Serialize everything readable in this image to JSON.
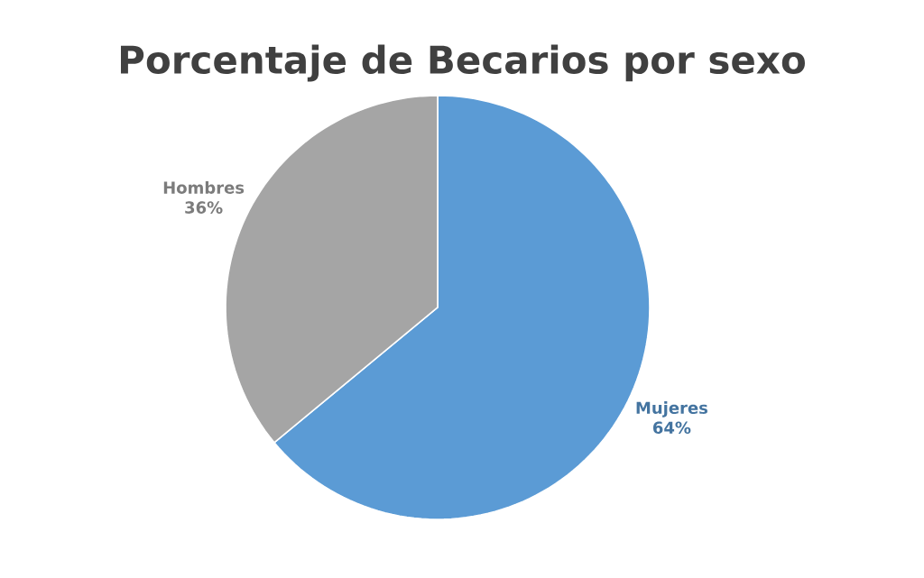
{
  "chart_data": {
    "type": "pie",
    "title": "Porcentaje de Becarios por sexo",
    "categories": [
      "Mujeres",
      "Hombres"
    ],
    "values": [
      64,
      36
    ],
    "colors": [
      "#5b9bd5",
      "#a5a5a5"
    ],
    "value_labels": [
      "64%",
      "36%"
    ]
  }
}
